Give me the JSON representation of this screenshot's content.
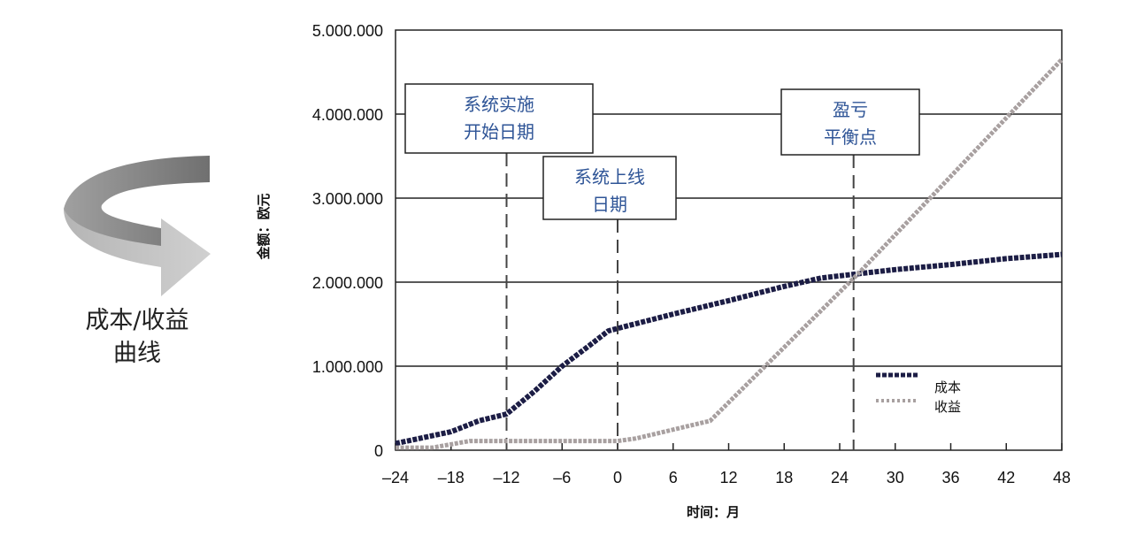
{
  "side_title": {
    "line1": "成本/收益",
    "line2": "曲线"
  },
  "icon": "curved-arrow-icon",
  "chart_data": {
    "type": "line",
    "xlabel": "时间：月",
    "ylabel": "金额：欧元",
    "xlim": [
      -24,
      48
    ],
    "ylim": [
      0,
      5000000
    ],
    "x_ticks": [
      "–24",
      "–18",
      "–12",
      "–6",
      "0",
      "6",
      "12",
      "18",
      "24",
      "30",
      "36",
      "42",
      "48"
    ],
    "x_tick_values": [
      -24,
      -18,
      -12,
      -6,
      0,
      6,
      12,
      18,
      24,
      30,
      36,
      42,
      48
    ],
    "y_ticks": [
      "0",
      "1.000.000",
      "2.000.000",
      "3.000.000",
      "4.000.000",
      "5.000.000"
    ],
    "y_tick_values": [
      0,
      1000000,
      2000000,
      3000000,
      4000000,
      5000000
    ],
    "grid": "horizontal",
    "legend_position": "bottom-right",
    "colors": {
      "cost": "#1c1d45",
      "revenue": "#a8a0a0",
      "annotation": "#2f5597"
    },
    "series": [
      {
        "name": "成本",
        "points": [
          [
            -24,
            80000
          ],
          [
            -18,
            220000
          ],
          [
            -15,
            350000
          ],
          [
            -12,
            430000
          ],
          [
            -9,
            700000
          ],
          [
            -6,
            1000000
          ],
          [
            -3,
            1250000
          ],
          [
            -1,
            1420000
          ],
          [
            0,
            1450000
          ],
          [
            6,
            1620000
          ],
          [
            12,
            1780000
          ],
          [
            18,
            1950000
          ],
          [
            22,
            2050000
          ],
          [
            26,
            2100000
          ],
          [
            30,
            2150000
          ],
          [
            36,
            2210000
          ],
          [
            42,
            2280000
          ],
          [
            48,
            2330000
          ]
        ]
      },
      {
        "name": "收益",
        "points": [
          [
            -24,
            30000
          ],
          [
            -20,
            30000
          ],
          [
            -16,
            110000
          ],
          [
            -12,
            110000
          ],
          [
            0,
            110000
          ],
          [
            2,
            140000
          ],
          [
            10,
            350000
          ],
          [
            26,
            2100000
          ],
          [
            48,
            4650000
          ]
        ]
      }
    ],
    "annotations": [
      {
        "lines": [
          "系统实施",
          "开始日期"
        ],
        "x": -12
      },
      {
        "lines": [
          "系统上线",
          "日期"
        ],
        "x": 0
      },
      {
        "lines": [
          "盈亏",
          "平衡点"
        ],
        "x": 25.5
      }
    ]
  }
}
